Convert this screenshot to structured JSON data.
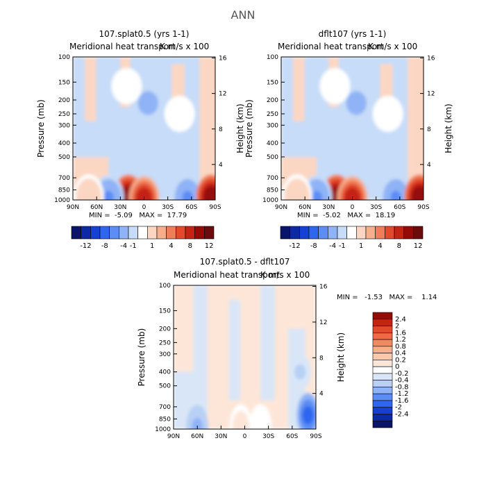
{
  "figure": {
    "title": "ANN"
  },
  "labels": {
    "left_axis": "Pressure (mb)",
    "right_axis": "Height (km)",
    "pressure_ticks": [
      "100",
      "150",
      "200",
      "250",
      "300",
      "400",
      "500",
      "700",
      "850",
      "1000"
    ],
    "height_ticks": [
      "16",
      "12",
      "8",
      "4"
    ],
    "lat_ticks": [
      "90N",
      "60N",
      "30N",
      "0",
      "30S",
      "60S",
      "90S"
    ]
  },
  "panels": {
    "p1": {
      "title": "107.splat0.5 (yrs 1-1)",
      "subtitle": "Meridional heat transport",
      "units": "K m/s x 100",
      "stats": "MIN =  -5.09   MAX =  17.79"
    },
    "p2": {
      "title": "dflt107 (yrs 1-1)",
      "subtitle": "Meridional heat transport",
      "units": "K m/s x 100",
      "stats": "MIN =  -5.02   MAX =  18.19"
    },
    "p3": {
      "title": "107.splat0.5 - dflt107",
      "subtitle": "Meridional heat transport",
      "units": "K m/s x 100",
      "stats": "MIN =   -1.53   MAX =    1.14"
    }
  },
  "colorbars": {
    "top": {
      "colors": [
        "#08156b",
        "#0b2aa4",
        "#1540d4",
        "#2f66ef",
        "#5c8df5",
        "#8fb3f6",
        "#c6dcf8",
        "#ffffff",
        "#fbd7c3",
        "#f6ae8c",
        "#ef7d59",
        "#e34a2b",
        "#c42412",
        "#950b07",
        "#6b0b0b"
      ],
      "labels": [
        "-12",
        "-8",
        "-4",
        "-1",
        "1",
        "4",
        "8",
        "12"
      ]
    },
    "diff": {
      "colors": [
        "#950b07",
        "#c42412",
        "#e34a2b",
        "#ef6a43",
        "#f28a60",
        "#f6ae8c",
        "#f9c9ad",
        "#fde6d7",
        "#ffffff",
        "#d9e6f7",
        "#b8d0f4",
        "#8fb3f6",
        "#5c8df5",
        "#2f66ef",
        "#1540d4",
        "#0b2aa4",
        "#08156b"
      ],
      "labels": [
        "2.4",
        "2",
        "1.6",
        "1.2",
        "0.8",
        "0.4",
        "0.2",
        "0",
        "-0.2",
        "-0.4",
        "-0.8",
        "-1.2",
        "-1.6",
        "-2",
        "-2.4"
      ]
    }
  },
  "chart_data": [
    {
      "type": "heatmap",
      "title": "107.splat0.5 (yrs 1-1)",
      "subtitle": "Meridional heat transport",
      "units": "K m/s x 100",
      "xlabel": "",
      "ylabel": "Pressure (mb)",
      "ylabel_right": "Height (km)",
      "x": [
        "90N",
        "60N",
        "30N",
        "0",
        "30S",
        "60S",
        "90S"
      ],
      "y_ticks": [
        100,
        150,
        200,
        250,
        300,
        400,
        500,
        700,
        850,
        1000
      ],
      "features": [
        {
          "lat": 20,
          "p": 950,
          "value": 12
        },
        {
          "lat": 0,
          "p": 975,
          "value": 10
        },
        {
          "lat": 45,
          "p": 960,
          "value": -4
        },
        {
          "lat": -55,
          "p": 960,
          "value": -4
        },
        {
          "lat": -85,
          "p": 950,
          "value": 12
        },
        {
          "lat": -5,
          "p": 210,
          "value": -3
        },
        {
          "lat": 22,
          "p": 160,
          "value": 1
        },
        {
          "lat": -45,
          "p": 250,
          "value": 1
        },
        {
          "lat": 70,
          "p": 950,
          "value": 2
        }
      ],
      "min": -5.09,
      "max": 17.79
    },
    {
      "type": "heatmap",
      "title": "dflt107 (yrs 1-1)",
      "subtitle": "Meridional heat transport",
      "units": "K m/s x 100",
      "xlabel": "",
      "ylabel": "Pressure (mb)",
      "ylabel_right": "Height (km)",
      "x": [
        "90N",
        "60N",
        "30N",
        "0",
        "30S",
        "60S",
        "90S"
      ],
      "y_ticks": [
        100,
        150,
        200,
        250,
        300,
        400,
        500,
        700,
        850,
        1000
      ],
      "features": [
        {
          "lat": 20,
          "p": 950,
          "value": 12
        },
        {
          "lat": 0,
          "p": 975,
          "value": 10
        },
        {
          "lat": 45,
          "p": 960,
          "value": -4
        },
        {
          "lat": -55,
          "p": 960,
          "value": -4
        },
        {
          "lat": -85,
          "p": 950,
          "value": 12
        },
        {
          "lat": -5,
          "p": 210,
          "value": -3
        },
        {
          "lat": 22,
          "p": 160,
          "value": 1
        },
        {
          "lat": -45,
          "p": 250,
          "value": 1
        },
        {
          "lat": 70,
          "p": 950,
          "value": 2
        }
      ],
      "min": -5.02,
      "max": 18.19
    },
    {
      "type": "heatmap",
      "title": "107.splat0.5 - dflt107",
      "subtitle": "Meridional heat transport",
      "units": "K m/s x 100",
      "xlabel": "",
      "ylabel": "Pressure (mb)",
      "ylabel_right": "Height (km)",
      "x": [
        "90N",
        "60N",
        "30N",
        "0",
        "30S",
        "60S",
        "90S"
      ],
      "y_ticks": [
        100,
        150,
        200,
        250,
        300,
        400,
        500,
        700,
        850,
        1000
      ],
      "features": [
        {
          "lat": 5,
          "p": 960,
          "value": 0.4
        },
        {
          "lat": -20,
          "p": 960,
          "value": 0.2
        },
        {
          "lat": 60,
          "p": 970,
          "value": -0.4
        },
        {
          "lat": -80,
          "p": 800,
          "value": -1.2
        },
        {
          "lat": -70,
          "p": 400,
          "value": -0.2
        }
      ],
      "min": -1.53,
      "max": 1.14
    }
  ]
}
